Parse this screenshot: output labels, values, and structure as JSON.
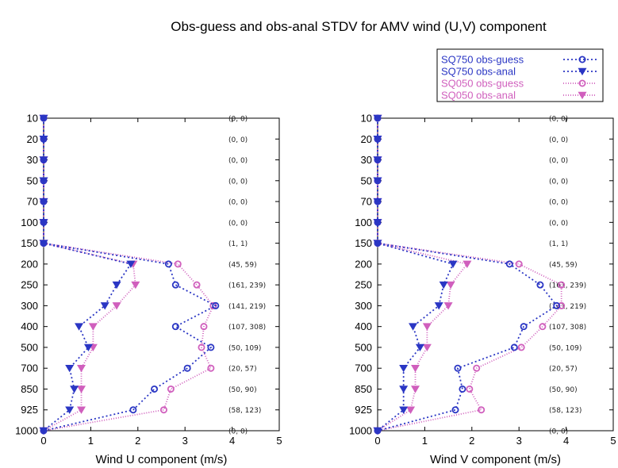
{
  "chart_data": {
    "title": "Obs-guess and obs-anal STDV for AMV wind (U,V) component",
    "type": "line",
    "legend_position": "top-right",
    "levels": [
      "10",
      "20",
      "30",
      "50",
      "70",
      "100",
      "150",
      "200",
      "250",
      "300",
      "400",
      "500",
      "700",
      "850",
      "925",
      "1000"
    ],
    "series_styles": [
      {
        "name": "SQ750 obs-guess",
        "color": "#2a36c4",
        "marker": "circle",
        "dash": "2,3"
      },
      {
        "name": "SQ750 obs-anal",
        "color": "#2a36c4",
        "marker": "triangle-down",
        "dash": "2,3"
      },
      {
        "name": "SQ050 obs-guess",
        "color": "#d05fbd",
        "marker": "circle",
        "dash": "1,2"
      },
      {
        "name": "SQ050 obs-anal",
        "color": "#d05fbd",
        "marker": "triangle-down",
        "dash": "1,2"
      }
    ],
    "panels": [
      {
        "xlabel": "Wind U component (m/s)",
        "xlim": [
          0,
          5
        ],
        "xticks": [
          "0",
          "1",
          "2",
          "3",
          "4",
          "5"
        ],
        "counts": [
          "(0, 0)",
          "(0, 0)",
          "(0, 0)",
          "(0, 0)",
          "(0, 0)",
          "(0, 0)",
          "(1, 1)",
          "(45, 59)",
          "(161, 239)",
          "(141, 219)",
          "(107, 308)",
          "(50, 109)",
          "(20, 57)",
          "(50, 90)",
          "(58, 123)",
          "(0, 0)"
        ],
        "series": [
          {
            "name": "SQ750 obs-guess",
            "values": [
              0,
              0,
              0,
              0,
              0,
              0,
              0,
              2.65,
              2.8,
              3.65,
              2.8,
              3.55,
              3.05,
              2.35,
              1.9,
              0
            ]
          },
          {
            "name": "SQ750 obs-anal",
            "values": [
              0,
              0,
              0,
              0,
              0,
              0,
              0,
              1.85,
              1.55,
              1.3,
              0.75,
              0.95,
              0.55,
              0.65,
              0.55,
              0
            ]
          },
          {
            "name": "SQ050 obs-guess",
            "values": [
              0,
              0,
              0,
              0,
              0,
              0,
              0,
              2.85,
              3.25,
              3.6,
              3.4,
              3.35,
              3.55,
              2.7,
              2.55,
              0
            ]
          },
          {
            "name": "SQ050 obs-anal",
            "values": [
              0,
              0,
              0,
              0,
              0,
              0,
              0,
              1.9,
              1.95,
              1.55,
              1.05,
              1.05,
              0.8,
              0.8,
              0.8,
              0
            ]
          }
        ]
      },
      {
        "xlabel": "Wind V component (m/s)",
        "xlim": [
          0,
          5
        ],
        "xticks": [
          "0",
          "1",
          "2",
          "3",
          "4",
          "5"
        ],
        "counts": [
          "(0, 0)",
          "(0, 0)",
          "(0, 0)",
          "(0, 0)",
          "(0, 0)",
          "(0, 0)",
          "(1, 1)",
          "(45, 59)",
          "(161, 239)",
          "(141, 219)",
          "(107, 308)",
          "(50, 109)",
          "(20, 57)",
          "(50, 90)",
          "(58, 123)",
          "(0, 0)"
        ],
        "series": [
          {
            "name": "SQ750 obs-guess",
            "values": [
              0,
              0,
              0,
              0,
              0,
              0,
              0,
              2.8,
              3.45,
              3.8,
              3.1,
              2.9,
              1.7,
              1.8,
              1.65,
              0
            ]
          },
          {
            "name": "SQ750 obs-anal",
            "values": [
              0,
              0,
              0,
              0,
              0,
              0,
              0,
              1.6,
              1.4,
              1.3,
              0.75,
              0.9,
              0.55,
              0.55,
              0.55,
              0
            ]
          },
          {
            "name": "SQ050 obs-guess",
            "values": [
              0,
              0,
              0,
              0,
              0,
              0,
              0,
              3.0,
              3.9,
              3.9,
              3.5,
              3.05,
              2.1,
              1.95,
              2.2,
              0
            ]
          },
          {
            "name": "SQ050 obs-anal",
            "values": [
              0,
              0,
              0,
              0,
              0,
              0,
              0,
              1.9,
              1.55,
              1.5,
              1.05,
              1.05,
              0.8,
              0.8,
              0.7,
              0
            ]
          }
        ]
      }
    ]
  }
}
